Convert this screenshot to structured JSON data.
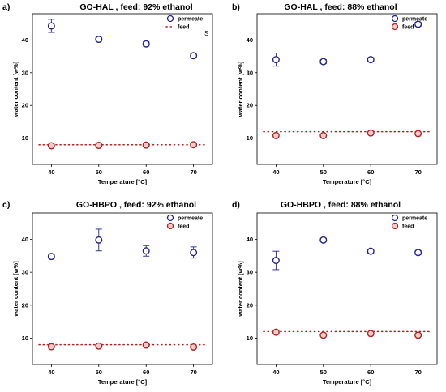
{
  "colors": {
    "permeate": "#23238e",
    "feed": "#b22222",
    "feed_fill": "#f2cccc",
    "axis": "#000000"
  },
  "chart_data": [
    {
      "panel_letter": "a)",
      "title": "GO-HAL , feed: 92% ethanol",
      "type": "scatter",
      "xlabel": "Temperature [°C]",
      "ylabel": "water content [w%]",
      "xlim": [
        36,
        74
      ],
      "ylim": [
        2,
        48
      ],
      "xticks": [
        40,
        50,
        60,
        70
      ],
      "yticks": [
        10,
        20,
        30,
        40
      ],
      "grid": false,
      "legend": {
        "placement": "top-right",
        "entries": [
          "permeate",
          "feed"
        ],
        "feed_marker": "dotted-line"
      },
      "stray_mark": "S",
      "series": [
        {
          "name": "permeate",
          "x": [
            40,
            50,
            60,
            70
          ],
          "y": [
            44.3,
            40.2,
            38.8,
            35.2
          ],
          "err": [
            2.0,
            0.6,
            0.7,
            0.7
          ]
        },
        {
          "name": "feed",
          "x": [
            40,
            50,
            60,
            70
          ],
          "y": [
            7.7,
            7.8,
            7.9,
            8.0
          ],
          "err": [
            0,
            0,
            0,
            0
          ],
          "level": 8.0
        }
      ]
    },
    {
      "panel_letter": "b)",
      "title": "GO-HAL , feed: 88% ethanol",
      "type": "scatter",
      "xlabel": "Temperature [°C]",
      "ylabel": "water content [w%]",
      "xlim": [
        36,
        74
      ],
      "ylim": [
        2,
        48
      ],
      "xticks": [
        40,
        50,
        60,
        70
      ],
      "yticks": [
        10,
        20,
        30,
        40
      ],
      "grid": false,
      "legend": {
        "placement": "top-right",
        "entries": [
          "permeate",
          "feed"
        ],
        "feed_marker": "circle"
      },
      "series": [
        {
          "name": "permeate",
          "x": [
            40,
            50,
            60,
            70
          ],
          "y": [
            34.0,
            33.4,
            34.0,
            44.8
          ],
          "err": [
            2.0,
            0.6,
            0.6,
            0.6
          ]
        },
        {
          "name": "feed",
          "x": [
            40,
            50,
            60,
            70
          ],
          "y": [
            10.8,
            10.8,
            11.6,
            11.4
          ],
          "err": [
            0,
            0,
            0,
            0
          ],
          "level": 12.0
        }
      ]
    },
    {
      "panel_letter": "c)",
      "title": "GO-HBPO ,  feed: 92% ethanol",
      "type": "scatter",
      "xlabel": "Temperature [°C]",
      "ylabel": "water content [w%]",
      "xlim": [
        36,
        74
      ],
      "ylim": [
        2,
        48
      ],
      "xticks": [
        40,
        50,
        60,
        70
      ],
      "yticks": [
        10,
        20,
        30,
        40
      ],
      "grid": false,
      "legend": {
        "placement": "top-right",
        "entries": [
          "permeate",
          "feed"
        ],
        "feed_marker": "circle"
      },
      "series": [
        {
          "name": "permeate",
          "x": [
            40,
            50,
            60,
            70
          ],
          "y": [
            34.8,
            39.8,
            36.5,
            36.0
          ],
          "err": [
            0.6,
            3.3,
            1.6,
            1.7
          ]
        },
        {
          "name": "feed",
          "x": [
            40,
            50,
            60,
            70
          ],
          "y": [
            7.4,
            7.6,
            7.9,
            7.3
          ],
          "err": [
            0,
            0,
            0,
            0
          ],
          "level": 8.0
        }
      ]
    },
    {
      "panel_letter": "d)",
      "title": "GO-HBPO , feed: 88% ethanol",
      "type": "scatter",
      "xlabel": "Temperature [°C]",
      "ylabel": "water content [w%]",
      "xlim": [
        36,
        74
      ],
      "ylim": [
        2,
        48
      ],
      "xticks": [
        40,
        50,
        60,
        70
      ],
      "yticks": [
        10,
        20,
        30,
        40
      ],
      "grid": false,
      "legend": {
        "placement": "top-right",
        "entries": [
          "permeate",
          "feed"
        ],
        "feed_marker": "circle"
      },
      "series": [
        {
          "name": "permeate",
          "x": [
            40,
            50,
            60,
            70
          ],
          "y": [
            33.6,
            39.8,
            36.4,
            36.0
          ],
          "err": [
            2.8,
            0.5,
            0.6,
            0.6
          ]
        },
        {
          "name": "feed",
          "x": [
            40,
            50,
            60,
            70
          ],
          "y": [
            11.8,
            10.9,
            11.4,
            10.9
          ],
          "err": [
            0,
            0,
            0,
            0
          ],
          "level": 12.0
        }
      ]
    }
  ]
}
